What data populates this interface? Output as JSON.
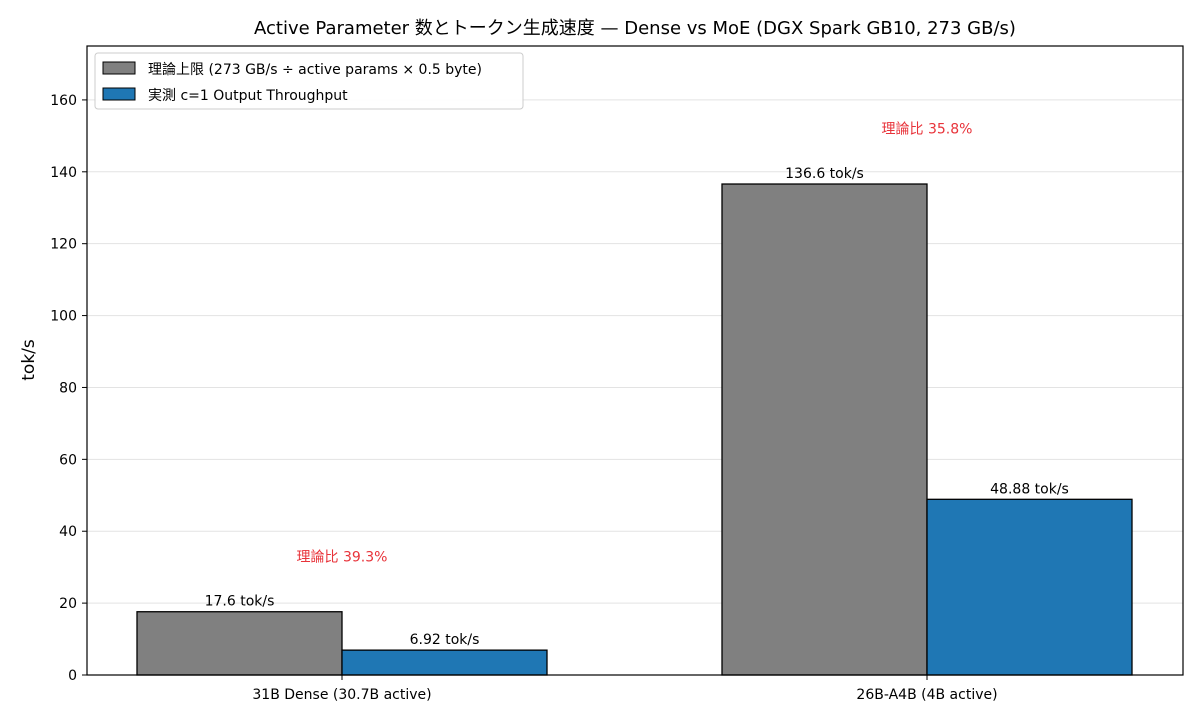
{
  "chart_data": {
    "type": "bar",
    "title": "Active Parameter 数とトークン生成速度 — Dense vs MoE (DGX Spark GB10, 273 GB/s)",
    "xlabel": "",
    "ylabel": "tok/s",
    "ylim": [
      0,
      175
    ],
    "yticks": [
      0,
      20,
      40,
      60,
      80,
      100,
      120,
      140,
      160
    ],
    "grid": "y",
    "legend_position": "top-left",
    "categories": [
      "31B Dense (30.7B active)",
      "26B-A4B (4B active)"
    ],
    "series": [
      {
        "name": "理論上限 (273 GB/s ÷ active params × 0.5 byte)",
        "values": [
          17.6,
          136.6
        ],
        "labels": [
          "17.6 tok/s",
          "136.6 tok/s"
        ],
        "color": "#808080"
      },
      {
        "name": "実測 c=1 Output Throughput",
        "values": [
          6.92,
          48.88
        ],
        "labels": [
          "6.92 tok/s",
          "48.88 tok/s"
        ],
        "color": "#1f77b4"
      }
    ],
    "annotations": [
      {
        "category_index": 0,
        "text": "理論比 39.3%",
        "y": 33,
        "color": "#e8333a"
      },
      {
        "category_index": 1,
        "text": "理論比 35.8%",
        "y": 152,
        "color": "#e8333a"
      }
    ]
  }
}
